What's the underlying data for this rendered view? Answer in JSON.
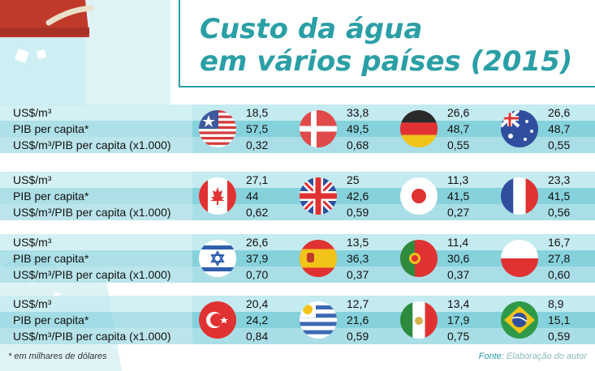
{
  "title": {
    "line1": "Custo da água",
    "line2": "em vários países (2015)"
  },
  "labels": [
    "US$/m³",
    "PIB per capita*",
    "US$/m³/PIB per capita (x1.000)"
  ],
  "blocks": [
    {
      "countries": [
        {
          "flag": "usa-flag-icon",
          "v": [
            "18,5",
            "57,5",
            "0,32"
          ]
        },
        {
          "flag": "denmark-flag-icon",
          "v": [
            "33,8",
            "49,5",
            "0,68"
          ]
        },
        {
          "flag": "germany-flag-icon",
          "v": [
            "26,6",
            "48,7",
            "0,55"
          ]
        },
        {
          "flag": "australia-flag-icon",
          "v": [
            "26,6",
            "48,7",
            "0,55"
          ]
        }
      ]
    },
    {
      "countries": [
        {
          "flag": "canada-flag-icon",
          "v": [
            "27,1",
            "44",
            "0,62"
          ]
        },
        {
          "flag": "uk-flag-icon",
          "v": [
            "25",
            "42,6",
            "0,59"
          ]
        },
        {
          "flag": "japan-flag-icon",
          "v": [
            "11,3",
            "41,5",
            "0,27"
          ]
        },
        {
          "flag": "france-flag-icon",
          "v": [
            "23,3",
            "41,5",
            "0,56"
          ]
        }
      ]
    },
    {
      "countries": [
        {
          "flag": "israel-flag-icon",
          "v": [
            "26,6",
            "37,9",
            "0,70"
          ]
        },
        {
          "flag": "spain-flag-icon",
          "v": [
            "13,5",
            "36,3",
            "0,37"
          ]
        },
        {
          "flag": "portugal-flag-icon",
          "v": [
            "11,4",
            "30,6",
            "0,37"
          ]
        },
        {
          "flag": "poland-flag-icon",
          "v": [
            "16,7",
            "27,8",
            "0,60"
          ]
        }
      ]
    },
    {
      "countries": [
        {
          "flag": "turkey-flag-icon",
          "v": [
            "20,4",
            "24,2",
            "0,84"
          ]
        },
        {
          "flag": "uruguay-flag-icon",
          "v": [
            "12,7",
            "21,6",
            "0,59"
          ]
        },
        {
          "flag": "mexico-flag-icon",
          "v": [
            "13,4",
            "17,9",
            "0,75"
          ]
        },
        {
          "flag": "brazil-flag-icon",
          "v": [
            "8,9",
            "15,1",
            "0,59"
          ]
        }
      ]
    }
  ],
  "footnote": "* em milhares de dólares",
  "source": {
    "label": "Fonte:",
    "value": "Elaboração do autor"
  },
  "colors": {
    "accent": "#2b9fa6",
    "band_light": "#c4ebf0",
    "band_mid": "#86d2dc",
    "band_alt": "#aadee6"
  }
}
